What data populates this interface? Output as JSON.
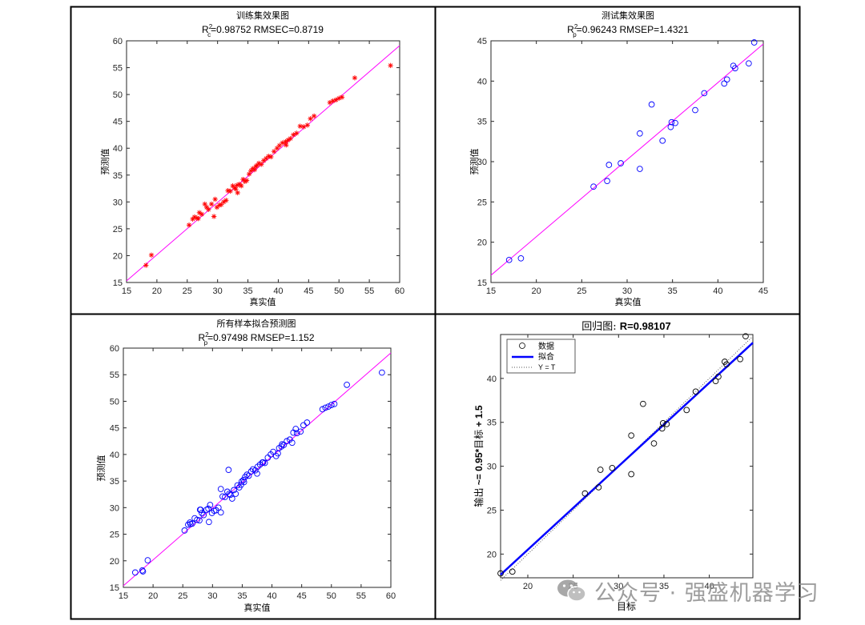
{
  "watermark": {
    "text": "公众号 · 强盛机器学习",
    "icon": "wechat-icon"
  },
  "colors": {
    "fit_line": "#ff00ff",
    "train_marker": "#ff0000",
    "test_marker": "#0000ff",
    "reg_marker": "#000000",
    "reg_fit": "#0000ff"
  },
  "chart_data": [
    {
      "type": "scatter",
      "title": "训练集效果图",
      "subtitle": {
        "prefix": "R",
        "sup": "2",
        "sub": "c",
        "rest": "=0.98752  RMSEC=0.8719"
      },
      "xlabel": "真实值",
      "ylabel": "预测值",
      "xlim": [
        15,
        60
      ],
      "ylim": [
        15,
        60
      ],
      "xticks": [
        15,
        20,
        25,
        30,
        35,
        40,
        45,
        50,
        55,
        60
      ],
      "yticks": [
        15,
        20,
        25,
        30,
        35,
        40,
        45,
        50,
        55,
        60
      ],
      "marker": "asterisk",
      "fit_line": [
        [
          15,
          15.3
        ],
        [
          60,
          59.1
        ]
      ],
      "points": [
        [
          18.2,
          18.2
        ],
        [
          19.1,
          20.1
        ],
        [
          25.3,
          25.7
        ],
        [
          25.9,
          26.8
        ],
        [
          26.2,
          27.2
        ],
        [
          26.6,
          27.0
        ],
        [
          27.0,
          28.0
        ],
        [
          27.4,
          27.7
        ],
        [
          27.9,
          29.6
        ],
        [
          28.2,
          29.0
        ],
        [
          28.5,
          28.6
        ],
        [
          29.0,
          29.6
        ],
        [
          29.4,
          27.3
        ],
        [
          29.6,
          30.5
        ],
        [
          29.9,
          29.0
        ],
        [
          30.3,
          29.4
        ],
        [
          30.6,
          29.5
        ],
        [
          31.0,
          30.0
        ],
        [
          31.4,
          30.3
        ],
        [
          31.7,
          32.1
        ],
        [
          32.1,
          32.0
        ],
        [
          32.5,
          33.0
        ],
        [
          32.8,
          32.6
        ],
        [
          33.0,
          32.4
        ],
        [
          33.3,
          31.7
        ],
        [
          33.6,
          33.3
        ],
        [
          33.9,
          33.0
        ],
        [
          34.2,
          34.2
        ],
        [
          34.5,
          33.8
        ],
        [
          34.8,
          34.0
        ],
        [
          35.2,
          35.2
        ],
        [
          35.5,
          35.8
        ],
        [
          35.8,
          36.2
        ],
        [
          36.1,
          36.0
        ],
        [
          36.5,
          36.8
        ],
        [
          36.8,
          37.2
        ],
        [
          37.2,
          37.0
        ],
        [
          37.6,
          37.7
        ],
        [
          38.0,
          38.1
        ],
        [
          38.4,
          38.5
        ],
        [
          38.8,
          38.4
        ],
        [
          39.3,
          39.4
        ],
        [
          39.8,
          40.0
        ],
        [
          40.2,
          40.5
        ],
        [
          40.7,
          41.0
        ],
        [
          41.2,
          41.2
        ],
        [
          41.6,
          41.5
        ],
        [
          42.0,
          41.8
        ],
        [
          42.5,
          42.5
        ],
        [
          43.0,
          42.8
        ],
        [
          43.6,
          44.1
        ],
        [
          44.2,
          44.0
        ],
        [
          44.8,
          44.3
        ],
        [
          45.3,
          45.5
        ],
        [
          45.9,
          46.0
        ],
        [
          48.5,
          48.5
        ],
        [
          49.0,
          48.8
        ],
        [
          49.5,
          49.0
        ],
        [
          50.0,
          49.3
        ],
        [
          50.5,
          49.5
        ],
        [
          52.6,
          53.1
        ],
        [
          58.5,
          55.4
        ],
        [
          26.8,
          26.9
        ],
        [
          33.2,
          33.1
        ],
        [
          36.3,
          36.6
        ],
        [
          41.3,
          40.6
        ]
      ]
    },
    {
      "type": "scatter",
      "title": "测试集效果图",
      "subtitle": {
        "prefix": "R",
        "sup": "2",
        "sub": "p",
        "rest": "=0.96243  RMSEP=1.4321"
      },
      "xlabel": "真实值",
      "ylabel": "预测值",
      "xlim": [
        15,
        45
      ],
      "ylim": [
        15,
        45
      ],
      "xticks": [
        15,
        20,
        25,
        30,
        35,
        40,
        45
      ],
      "yticks": [
        15,
        20,
        25,
        30,
        35,
        40,
        45
      ],
      "marker": "circle",
      "fit_line": [
        [
          15,
          15.9
        ],
        [
          45,
          44.6
        ]
      ],
      "points": [
        [
          17.0,
          17.8
        ],
        [
          18.3,
          18.0
        ],
        [
          26.3,
          26.9
        ],
        [
          27.8,
          27.6
        ],
        [
          28.0,
          29.6
        ],
        [
          29.3,
          29.8
        ],
        [
          31.4,
          29.1
        ],
        [
          31.4,
          33.5
        ],
        [
          32.7,
          37.1
        ],
        [
          33.9,
          32.6
        ],
        [
          34.8,
          34.3
        ],
        [
          34.9,
          34.9
        ],
        [
          35.3,
          34.8
        ],
        [
          37.5,
          36.4
        ],
        [
          38.5,
          38.5
        ],
        [
          40.7,
          39.7
        ],
        [
          41.0,
          40.2
        ],
        [
          41.7,
          41.9
        ],
        [
          41.9,
          41.6
        ],
        [
          43.4,
          42.2
        ],
        [
          44.0,
          44.8
        ]
      ]
    },
    {
      "type": "scatter",
      "title": "所有样本拟合预测图",
      "subtitle": {
        "prefix": "R",
        "sup": "2",
        "sub": "p",
        "rest": "=0.97498  RMSEP=1.152"
      },
      "xlabel": "真实值",
      "ylabel": "预测值",
      "xlim": [
        15,
        60
      ],
      "ylim": [
        15,
        60
      ],
      "xticks": [
        15,
        20,
        25,
        30,
        35,
        40,
        45,
        50,
        55,
        60
      ],
      "yticks": [
        15,
        20,
        25,
        30,
        35,
        40,
        45,
        50,
        55,
        60
      ],
      "marker": "circle",
      "fit_line": [
        [
          15,
          15.3
        ],
        [
          60,
          59.1
        ]
      ],
      "points": [
        [
          17.0,
          17.8
        ],
        [
          18.2,
          18.2
        ],
        [
          18.3,
          18.0
        ],
        [
          19.1,
          20.1
        ],
        [
          25.3,
          25.7
        ],
        [
          25.9,
          26.8
        ],
        [
          26.2,
          27.2
        ],
        [
          26.3,
          26.9
        ],
        [
          26.6,
          27.0
        ],
        [
          27.0,
          28.0
        ],
        [
          27.4,
          27.7
        ],
        [
          27.8,
          27.6
        ],
        [
          27.9,
          29.6
        ],
        [
          28.0,
          29.6
        ],
        [
          28.2,
          29.0
        ],
        [
          28.5,
          28.6
        ],
        [
          29.0,
          29.6
        ],
        [
          29.3,
          29.8
        ],
        [
          29.4,
          27.3
        ],
        [
          29.6,
          30.5
        ],
        [
          29.9,
          29.0
        ],
        [
          30.3,
          29.4
        ],
        [
          30.6,
          29.5
        ],
        [
          31.0,
          30.0
        ],
        [
          31.4,
          29.1
        ],
        [
          31.4,
          33.5
        ],
        [
          31.7,
          32.1
        ],
        [
          32.1,
          32.0
        ],
        [
          32.5,
          33.0
        ],
        [
          32.7,
          37.1
        ],
        [
          32.8,
          32.6
        ],
        [
          33.0,
          32.4
        ],
        [
          33.3,
          31.7
        ],
        [
          33.6,
          33.3
        ],
        [
          33.9,
          32.6
        ],
        [
          34.2,
          34.2
        ],
        [
          34.5,
          33.8
        ],
        [
          34.8,
          34.3
        ],
        [
          34.9,
          34.9
        ],
        [
          35.2,
          35.2
        ],
        [
          35.3,
          34.8
        ],
        [
          35.5,
          35.8
        ],
        [
          35.8,
          36.2
        ],
        [
          36.1,
          36.0
        ],
        [
          36.5,
          36.8
        ],
        [
          36.8,
          37.2
        ],
        [
          37.2,
          37.0
        ],
        [
          37.5,
          36.4
        ],
        [
          37.6,
          37.7
        ],
        [
          38.0,
          38.1
        ],
        [
          38.4,
          38.5
        ],
        [
          38.5,
          38.5
        ],
        [
          38.8,
          38.4
        ],
        [
          39.3,
          39.4
        ],
        [
          39.8,
          40.0
        ],
        [
          40.2,
          40.5
        ],
        [
          40.7,
          39.7
        ],
        [
          41.0,
          40.2
        ],
        [
          41.2,
          41.2
        ],
        [
          41.6,
          41.5
        ],
        [
          41.7,
          41.9
        ],
        [
          42.0,
          41.8
        ],
        [
          42.5,
          42.5
        ],
        [
          43.0,
          42.8
        ],
        [
          43.4,
          42.2
        ],
        [
          43.6,
          44.1
        ],
        [
          44.0,
          44.8
        ],
        [
          44.2,
          44.0
        ],
        [
          44.8,
          44.3
        ],
        [
          45.3,
          45.5
        ],
        [
          45.9,
          46.0
        ],
        [
          48.5,
          48.5
        ],
        [
          49.0,
          48.8
        ],
        [
          49.5,
          49.0
        ],
        [
          50.0,
          49.3
        ],
        [
          50.5,
          49.5
        ],
        [
          52.6,
          53.1
        ],
        [
          58.5,
          55.4
        ]
      ]
    },
    {
      "type": "scatter",
      "title_prefix": "回归图: ",
      "title_value": "R=0.98107",
      "xlabel": "目标",
      "ylabel_cn": "输出",
      "ylabel_eq": " ~= 0.95*",
      "ylabel_cn2": "目标",
      "ylabel_eq2": " + 1.5",
      "xlim": [
        17,
        44.8
      ],
      "ylim": [
        17.3,
        45
      ],
      "xticks": [
        20,
        25,
        30,
        35,
        40
      ],
      "yticks": [
        20,
        25,
        30,
        35,
        40
      ],
      "marker": "circle",
      "fit_line": [
        [
          17,
          17.65
        ],
        [
          44.8,
          44.06
        ]
      ],
      "identity_line": [
        [
          17,
          17
        ],
        [
          44.8,
          44.8
        ]
      ],
      "legend": {
        "placement": "top-left",
        "entries": [
          "数据",
          "拟合",
          "Y = T"
        ]
      },
      "points": [
        [
          17.0,
          17.8
        ],
        [
          18.3,
          18.0
        ],
        [
          26.3,
          26.9
        ],
        [
          27.8,
          27.6
        ],
        [
          28.0,
          29.6
        ],
        [
          29.3,
          29.8
        ],
        [
          31.4,
          29.1
        ],
        [
          31.4,
          33.5
        ],
        [
          32.7,
          37.1
        ],
        [
          33.9,
          32.6
        ],
        [
          34.8,
          34.3
        ],
        [
          34.9,
          34.9
        ],
        [
          35.3,
          34.8
        ],
        [
          37.5,
          36.4
        ],
        [
          38.5,
          38.5
        ],
        [
          40.7,
          39.7
        ],
        [
          41.0,
          40.2
        ],
        [
          41.7,
          41.9
        ],
        [
          41.9,
          41.6
        ],
        [
          43.4,
          42.2
        ],
        [
          44.0,
          44.8
        ]
      ]
    }
  ]
}
